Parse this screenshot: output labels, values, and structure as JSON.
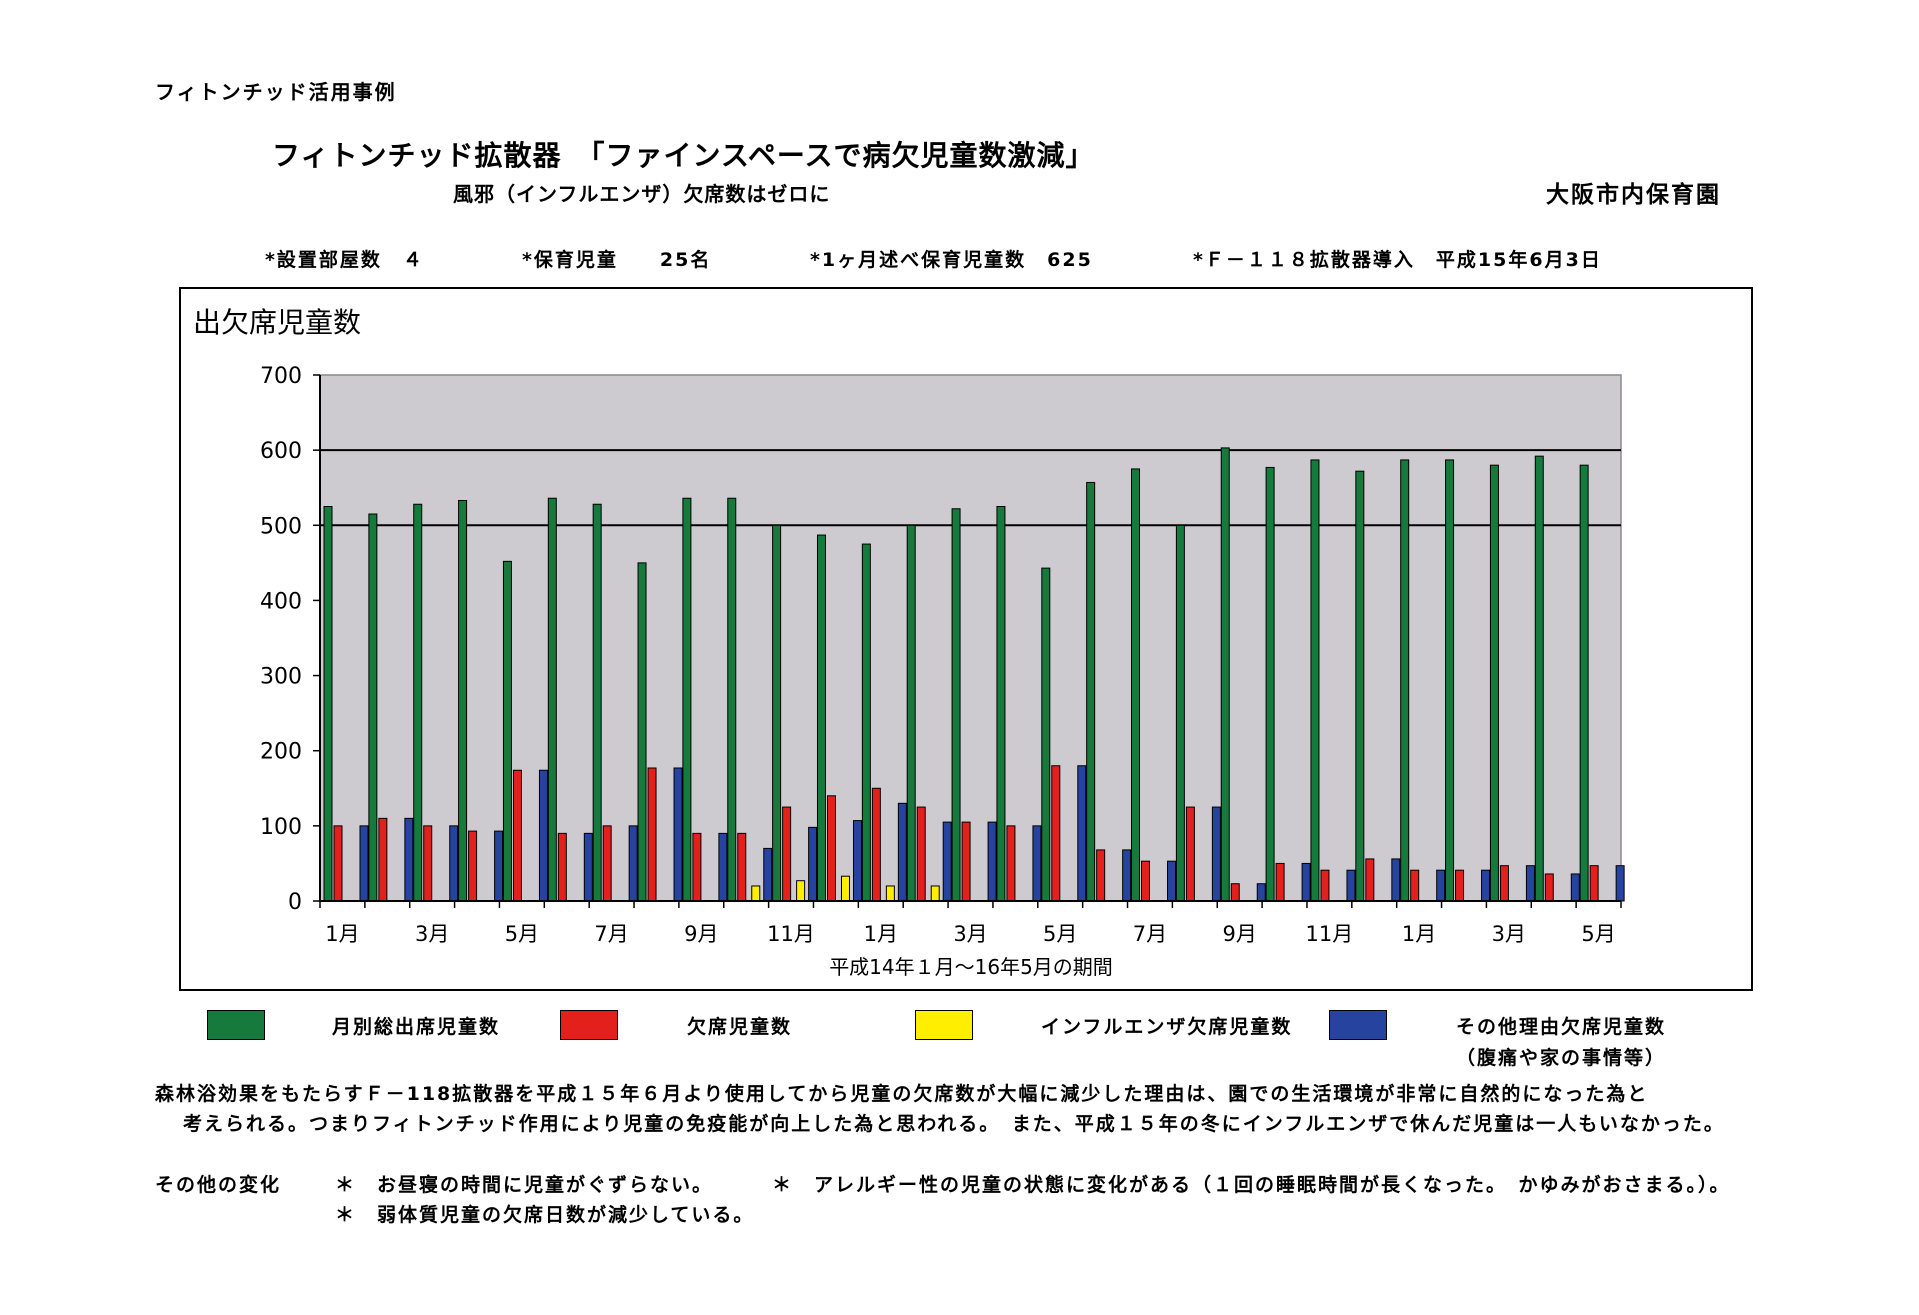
{
  "header": {
    "doc_label": "フィトンチッド活用事例",
    "title": "フィトンチッド拡散器　「ファインスペースで病欠児童数激減」",
    "subtitle": "風邪（インフルエンザ）欠席数はゼロに",
    "organization": "大阪市内保育園"
  },
  "stats": {
    "rooms": "*設置部屋数　４",
    "children": "*保育児童　　25名",
    "monthly_total": "*1ヶ月述べ保育児童数　625",
    "introduced": "*Ｆ－１１８拡散器導入　平成15年6月3日"
  },
  "colors": {
    "attendance": "#157a3c",
    "absence": "#e3201b",
    "influenza": "#ffee00",
    "other": "#2743a0",
    "plot_bg": "#cdcbd0"
  },
  "chart_data": {
    "type": "bar",
    "title": "出欠席児童数",
    "xlabel": "平成14年１月～16年5月の期間",
    "ylabel": "",
    "ylim": [
      0,
      700
    ],
    "yticks": [
      0,
      100,
      200,
      300,
      400,
      500,
      600,
      700
    ],
    "gridlines": [
      500,
      600
    ],
    "categories": [
      "1月",
      "2月",
      "3月",
      "4月",
      "5月",
      "6月",
      "7月",
      "8月",
      "9月",
      "10月",
      "11月",
      "12月",
      "1月",
      "2月",
      "3月",
      "4月",
      "5月",
      "6月",
      "7月",
      "8月",
      "9月",
      "10月",
      "11月",
      "12月",
      "1月",
      "2月",
      "3月",
      "4月",
      "5月"
    ],
    "tick_labels": [
      "1月",
      "",
      "3月",
      "",
      "5月",
      "",
      "7月",
      "",
      "9月",
      "",
      "11月",
      "",
      "1月",
      "",
      "3月",
      "",
      "5月",
      "",
      "7月",
      "",
      "9月",
      "",
      "11月",
      "",
      "1月",
      "",
      "3月",
      "",
      "5月"
    ],
    "series": [
      {
        "name": "月別総出席児童数",
        "color": "#157a3c",
        "values": [
          525,
          515,
          528,
          533,
          452,
          536,
          528,
          450,
          536,
          536,
          500,
          487,
          475,
          500,
          522,
          525,
          443,
          557,
          575,
          500,
          603,
          577,
          587,
          572,
          587,
          587,
          580,
          592,
          580
        ]
      },
      {
        "name": "欠席児童数",
        "color": "#e3201b",
        "values": [
          100,
          110,
          100,
          93,
          174,
          90,
          100,
          177,
          90,
          90,
          125,
          140,
          150,
          125,
          105,
          100,
          180,
          68,
          53,
          125,
          23,
          50,
          41,
          56,
          41,
          41,
          47,
          36,
          47
        ]
      },
      {
        "name": "インフルエンザ欠席児童数",
        "color": "#ffee00",
        "values": [
          0,
          0,
          0,
          0,
          0,
          0,
          0,
          0,
          0,
          20,
          27,
          33,
          20,
          20,
          0,
          0,
          0,
          0,
          0,
          0,
          0,
          0,
          0,
          0,
          0,
          0,
          0,
          0,
          0
        ]
      },
      {
        "name": "その他理由欠席児童数",
        "color": "#2743a0",
        "values": [
          100,
          110,
          100,
          93,
          174,
          90,
          100,
          177,
          90,
          70,
          98,
          107,
          130,
          105,
          105,
          100,
          180,
          68,
          53,
          125,
          23,
          50,
          41,
          56,
          41,
          41,
          47,
          36,
          47
        ]
      }
    ]
  },
  "legend": {
    "attendance": "月別総出席児童数",
    "absence": "欠席児童数",
    "influenza": "インフルエンザ欠席児童数",
    "other": "その他理由欠席児童数",
    "other_note": "（腹痛や家の事情等）"
  },
  "body": {
    "line1": "森林浴効果をもたらすＦ－118拡散器を平成１５年６月より使用してから児童の欠席数が大幅に減少した理由は、園での生活環境が非常に自然的になった為と",
    "line2": "考えられる。つまりフィトンチッド作用により児童の免疫能が向上した為と思われる。　また、平成１５年の冬にインフルエンザで休んだ児童は一人もいなかった。",
    "changes_label": "その他の変化",
    "change1": "＊　お昼寝の時間に児童がぐずらない。",
    "change2": "＊　アレルギー性の児童の状態に変化がある（１回の睡眠時間が長くなった。　かゆみがおさまる。）。",
    "change3": "＊　弱体質児童の欠席日数が減少している。"
  }
}
